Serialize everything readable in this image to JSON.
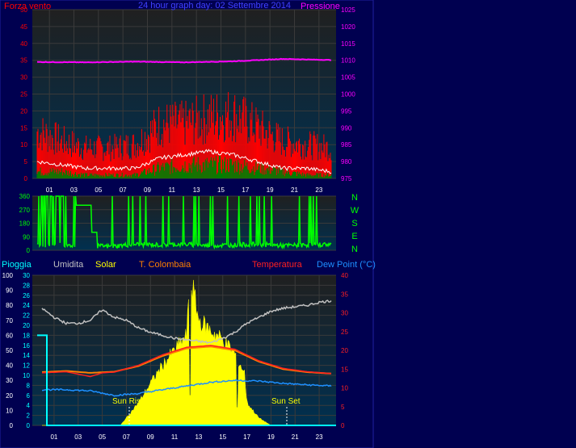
{
  "colors": {
    "background": "#000050",
    "plot_bg_top": "#202020",
    "plot_bg_bottom": "#003050",
    "wind_gust": "#ff0000",
    "wind_avg": "#008000",
    "wind_line": "#ffffff",
    "pressure": "#ff00ff",
    "direction": "#00ff00",
    "rain": "#00ffff",
    "humidity": "#c0c0c0",
    "solar": "#ffff00",
    "temp_inside": "#ff8000",
    "temperature": "#ff2020",
    "dewpoint": "#1e90ff",
    "title": "#4040ff"
  },
  "labels": {
    "wind": "Forza vento",
    "title": "24 hour graph day: 02 Settembre 2014",
    "pressure": "Pressione",
    "rain": "Pioggia",
    "humidity": "Umidita",
    "solar": "Solar",
    "inside": "T. Colombaia",
    "temperature": "Temperatura",
    "dewpoint": "Dew Point (°C)",
    "sunrise": "Sun Rise",
    "sunset": "Sun Set"
  },
  "chart_data": [
    {
      "type": "line",
      "title": "24 hour graph day: 02 Settembre 2014",
      "x_ticks": [
        "01",
        "03",
        "05",
        "07",
        "09",
        "11",
        "13",
        "15",
        "17",
        "19",
        "21",
        "23"
      ],
      "y_left": {
        "label": "Forza vento",
        "ticks": [
          0,
          5,
          10,
          15,
          20,
          25,
          30,
          35,
          40,
          45,
          50
        ],
        "lim": [
          0,
          50
        ]
      },
      "y_right": {
        "label": "Pressione",
        "ticks": [
          975,
          980,
          985,
          990,
          995,
          1000,
          1005,
          1010,
          1015,
          1020,
          1025
        ],
        "lim": [
          975,
          1025
        ]
      },
      "series": [
        {
          "name": "Pressione",
          "axis": "right",
          "x": [
            0,
            4,
            8,
            12,
            16,
            20,
            24
          ],
          "values": [
            1009.5,
            1009.4,
            1009.6,
            1009.4,
            1009.7,
            1010.4,
            1010.1
          ]
        },
        {
          "axis": "left",
          "x": [
            0,
            2,
            4,
            6,
            8,
            10,
            12,
            14,
            16,
            18,
            20,
            22,
            24
          ],
          "values": [
            14,
            11,
            9,
            9,
            10,
            16,
            16,
            18,
            19,
            15,
            11,
            10,
            9
          ]
        },
        {
          "axis": "left",
          "x": [
            0,
            2,
            4,
            6,
            8,
            10,
            12,
            14,
            16,
            18,
            20,
            22,
            24
          ],
          "values": [
            5,
            4,
            3,
            3,
            3,
            6,
            7,
            8,
            7,
            5,
            3,
            3,
            2
          ]
        },
        {
          "axis": "left",
          "x": [
            0,
            2,
            4,
            6,
            8,
            10,
            12,
            14,
            16,
            18,
            20,
            22,
            24
          ],
          "values": [
            2,
            2,
            1,
            1,
            1,
            3,
            4,
            4,
            4,
            3,
            2,
            1,
            1
          ]
        }
      ]
    },
    {
      "type": "line",
      "x_ticks": [
        "01",
        "03",
        "05",
        "07",
        "09",
        "11",
        "13",
        "15",
        "17",
        "19",
        "21",
        "23"
      ],
      "y_left": {
        "ticks": [
          0,
          90,
          180,
          270,
          360
        ],
        "lim": [
          0,
          360
        ]
      },
      "y_right_labels": [
        "N",
        "W",
        "S",
        "E",
        "N"
      ],
      "series": [
        {
          "axis": "left",
          "x": [
            0,
            2,
            4,
            6,
            8,
            10,
            12,
            14,
            16,
            18,
            20,
            22,
            24
          ],
          "values": [
            30,
            35,
            30,
            25,
            40,
            35,
            40,
            30,
            35,
            40,
            30,
            35,
            40
          ]
        }
      ]
    },
    {
      "type": "line",
      "x_ticks": [
        "01",
        "03",
        "05",
        "07",
        "09",
        "11",
        "13",
        "15",
        "17",
        "19",
        "21",
        "23"
      ],
      "y_left_outer": {
        "label": "Umidita",
        "ticks": [
          0,
          10,
          20,
          30,
          40,
          50,
          60,
          70,
          80,
          90,
          100
        ],
        "lim": [
          0,
          100
        ]
      },
      "y_left_inner": {
        "label": "Pioggia",
        "ticks": [
          0,
          2,
          4,
          6,
          8,
          10,
          12,
          14,
          16,
          18,
          20,
          22,
          24,
          26,
          28,
          30
        ],
        "lim": [
          0,
          30
        ]
      },
      "y_right": {
        "label": "Temperatura",
        "ticks": [
          0,
          5,
          10,
          15,
          20,
          25,
          30,
          35,
          40
        ],
        "lim": [
          0,
          40
        ]
      },
      "annotations": [
        "Sun Rise",
        "Sun Set"
      ],
      "series": [
        {
          "name": "Umidita",
          "axis": "humidity",
          "x": [
            0,
            1,
            2,
            3,
            4,
            5,
            6,
            7,
            8,
            9,
            10,
            11,
            12,
            13,
            14,
            15,
            16,
            17,
            18,
            19,
            20,
            21,
            22,
            23,
            24
          ],
          "values": [
            78,
            72,
            68,
            68,
            70,
            77,
            72,
            70,
            65,
            62,
            60,
            58,
            57,
            56,
            55,
            58,
            62,
            68,
            72,
            76,
            78,
            79,
            80,
            82,
            83
          ]
        },
        {
          "name": "Pioggia",
          "axis": "rain",
          "x": [
            0,
            0.6,
            0.6,
            24
          ],
          "values": [
            18,
            18,
            0,
            0
          ]
        },
        {
          "name": "Solar",
          "axis": "humidity",
          "x": [
            0,
            6.5,
            8,
            9,
            10,
            11,
            12,
            12.2,
            12.5,
            13,
            14,
            15,
            16,
            16.8,
            17,
            18,
            19,
            24
          ],
          "values": [
            0,
            0,
            15,
            28,
            40,
            50,
            60,
            85,
            92,
            70,
            63,
            57,
            48,
            35,
            15,
            5,
            0,
            0
          ]
        },
        {
          "name": "T. Colombaia",
          "axis": "temp",
          "x": [
            0,
            2,
            4,
            6,
            8,
            10,
            12,
            14,
            16,
            18,
            20,
            22,
            24
          ],
          "values": [
            14.2,
            14.5,
            14.0,
            14.3,
            15.8,
            18.5,
            20.5,
            21.0,
            20.0,
            17.0,
            15.0,
            14.2,
            13.8
          ]
        },
        {
          "name": "Temperatura",
          "axis": "temp",
          "x": [
            0,
            2,
            4,
            5,
            6,
            8,
            10,
            12,
            14,
            16,
            18,
            20,
            22,
            24
          ],
          "values": [
            14.0,
            14.3,
            13.0,
            14.0,
            14.2,
            16.0,
            18.8,
            20.8,
            21.3,
            20.3,
            17.2,
            15.2,
            14.3,
            13.8
          ]
        },
        {
          "name": "Dew Point (°C)",
          "axis": "temp",
          "x": [
            0,
            2,
            4,
            6,
            8,
            10,
            12,
            14,
            16,
            18,
            20,
            22,
            24
          ],
          "values": [
            9.5,
            9.5,
            9.2,
            8.0,
            8.5,
            9.5,
            10.5,
            11.5,
            12.0,
            11.8,
            11.2,
            10.8,
            10.5
          ]
        }
      ]
    }
  ]
}
